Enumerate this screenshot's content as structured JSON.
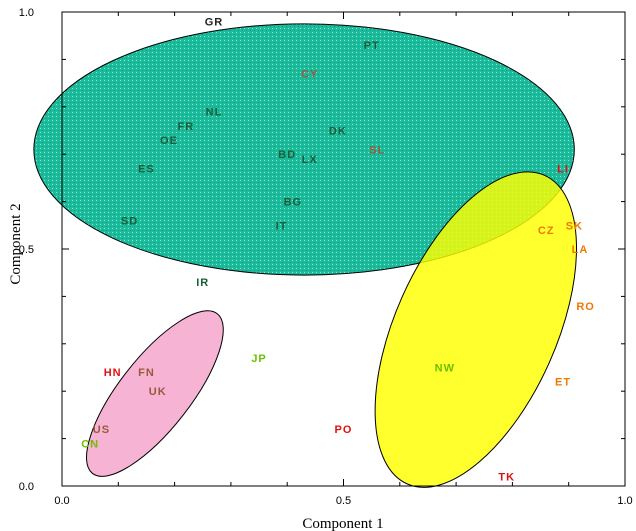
{
  "chart_data": {
    "type": "scatter",
    "title": "",
    "xlabel": "Component 1",
    "ylabel": "Component 2",
    "xlim": [
      0.0,
      1.0
    ],
    "ylim": [
      0.0,
      1.0
    ],
    "x_ticks": [
      "0.0",
      "0.5",
      "1.0"
    ],
    "y_ticks": [
      "0.0",
      "0.5",
      "1.0"
    ],
    "grid": false,
    "colors": {
      "green_cluster": "#1abc9c",
      "yellow_cluster": "#ffff00",
      "pink_cluster": "#f4a6cc",
      "label_dark_green": "#1b5e3a",
      "label_brown": "#9a5a3a",
      "label_red": "#e01010",
      "label_orange": "#f07800",
      "label_light_green": "#6cc000",
      "label_black": "#222222"
    },
    "clusters": [
      {
        "name": "green",
        "cx": 0.43,
        "cy": 0.71,
        "rx": 0.48,
        "ry": 0.265,
        "rotation_deg": 0
      },
      {
        "name": "yellow",
        "cx": 0.735,
        "cy": 0.33,
        "rx": 0.3,
        "ry": 0.17,
        "rotation_deg": -66
      },
      {
        "name": "pink",
        "cx": 0.165,
        "cy": 0.195,
        "rx": 0.18,
        "ry": 0.075,
        "rotation_deg": -52
      }
    ],
    "points": [
      {
        "label": "GR",
        "x": 0.27,
        "y": 0.98,
        "color": "label_black"
      },
      {
        "label": "PT",
        "x": 0.55,
        "y": 0.93,
        "color": "label_dark_green"
      },
      {
        "label": "CY",
        "x": 0.44,
        "y": 0.87,
        "color": "label_brown"
      },
      {
        "label": "NL",
        "x": 0.27,
        "y": 0.79,
        "color": "label_dark_green"
      },
      {
        "label": "FR",
        "x": 0.22,
        "y": 0.76,
        "color": "label_dark_green"
      },
      {
        "label": "DK",
        "x": 0.49,
        "y": 0.75,
        "color": "label_dark_green"
      },
      {
        "label": "OE",
        "x": 0.19,
        "y": 0.73,
        "color": "label_dark_green"
      },
      {
        "label": "SL",
        "x": 0.56,
        "y": 0.71,
        "color": "label_brown"
      },
      {
        "label": "BD",
        "x": 0.4,
        "y": 0.7,
        "color": "label_dark_green"
      },
      {
        "label": "LX",
        "x": 0.44,
        "y": 0.69,
        "color": "label_dark_green"
      },
      {
        "label": "ES",
        "x": 0.15,
        "y": 0.67,
        "color": "label_dark_green"
      },
      {
        "label": "BG",
        "x": 0.41,
        "y": 0.6,
        "color": "label_dark_green"
      },
      {
        "label": "SD",
        "x": 0.12,
        "y": 0.56,
        "color": "label_dark_green"
      },
      {
        "label": "IT",
        "x": 0.39,
        "y": 0.55,
        "color": "label_dark_green"
      },
      {
        "label": "IR",
        "x": 0.25,
        "y": 0.43,
        "color": "label_dark_green"
      },
      {
        "label": "JP",
        "x": 0.35,
        "y": 0.27,
        "color": "label_light_green"
      },
      {
        "label": "LI",
        "x": 0.89,
        "y": 0.67,
        "color": "label_red"
      },
      {
        "label": "CZ",
        "x": 0.86,
        "y": 0.54,
        "color": "label_orange"
      },
      {
        "label": "SK",
        "x": 0.91,
        "y": 0.55,
        "color": "label_orange"
      },
      {
        "label": "LA",
        "x": 0.92,
        "y": 0.5,
        "color": "label_orange"
      },
      {
        "label": "RO",
        "x": 0.93,
        "y": 0.38,
        "color": "label_orange"
      },
      {
        "label": "NW",
        "x": 0.68,
        "y": 0.25,
        "color": "label_light_green"
      },
      {
        "label": "ET",
        "x": 0.89,
        "y": 0.22,
        "color": "label_orange"
      },
      {
        "label": "PO",
        "x": 0.5,
        "y": 0.12,
        "color": "label_red"
      },
      {
        "label": "TK",
        "x": 0.79,
        "y": 0.02,
        "color": "label_red"
      },
      {
        "label": "HN",
        "x": 0.09,
        "y": 0.24,
        "color": "label_red"
      },
      {
        "label": "FN",
        "x": 0.15,
        "y": 0.24,
        "color": "label_brown"
      },
      {
        "label": "UK",
        "x": 0.17,
        "y": 0.2,
        "color": "label_brown"
      },
      {
        "label": "US",
        "x": 0.07,
        "y": 0.12,
        "color": "label_brown"
      },
      {
        "label": "CN",
        "x": 0.05,
        "y": 0.09,
        "color": "label_light_green"
      }
    ]
  }
}
